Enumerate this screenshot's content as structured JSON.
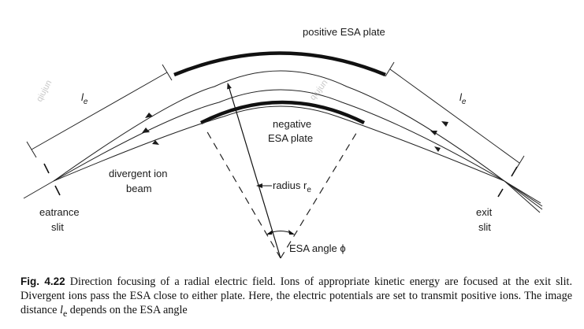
{
  "labels": {
    "positive_plate": "positive ESA plate",
    "negative_plate_line1": "negative",
    "negative_plate_line2": "ESA plate",
    "le": "l",
    "le_sub": "e",
    "divergent_line1": "divergent ion",
    "divergent_line2": "beam",
    "radius": "radius r",
    "radius_sub": "e",
    "entrance_line1": "eatrance",
    "entrance_line2": "slit",
    "exit_line1": "exit",
    "exit_line2": "slit",
    "esa_angle": "ESA angle ϕ"
  },
  "watermark": "qiujun",
  "caption": {
    "fig_label": "Fig. 4.22",
    "text_before_symbol": "Direction focusing of a radial electric field. Ions of appropriate kinetic energy are focused at the exit slit. Divergent ions pass the ESA close to either plate. Here, the electric potentials are set to transmit positive ions. The image distance ",
    "symbol": "l",
    "symbol_sub": "e",
    "text_after_symbol": " depends on the ESA angle"
  }
}
